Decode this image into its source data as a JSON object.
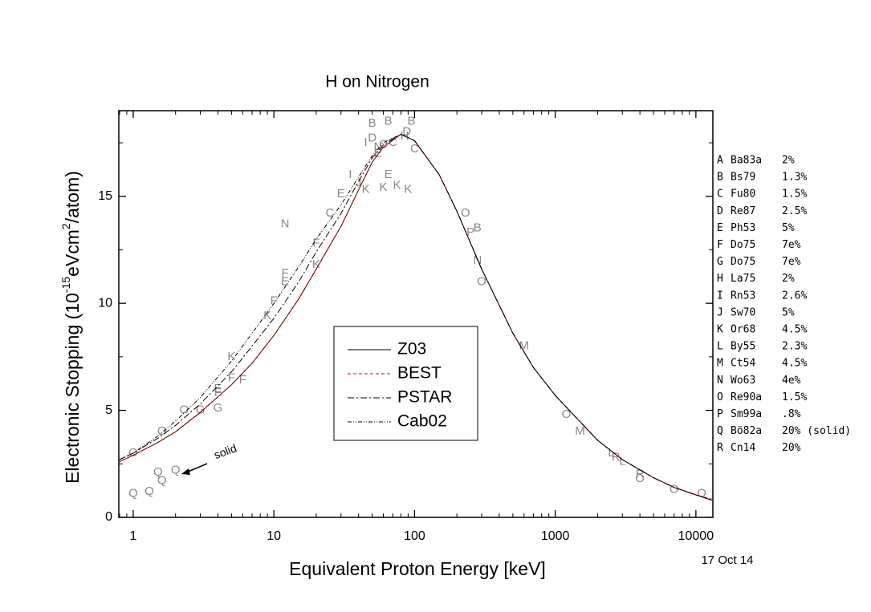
{
  "chart_data": {
    "type": "line",
    "title": "H on Nitrogen",
    "xlabel": "Equivalent Proton Energy [keV]",
    "ylabel_parts": [
      "Electronic Stopping (10",
      "-15",
      "eVcm",
      "2",
      "/atom)"
    ],
    "log_x": true,
    "xlim": [
      0.79,
      13200
    ],
    "xticks": [
      1,
      10,
      100,
      1000,
      10000
    ],
    "ylim": [
      0,
      19
    ],
    "yticks": [
      0,
      5,
      10,
      15
    ],
    "x": [
      0.8,
      1,
      1.5,
      2,
      3,
      5,
      7,
      10,
      15,
      20,
      30,
      40,
      50,
      60,
      80,
      100,
      150,
      200,
      300,
      500,
      700,
      1000,
      2000,
      3000,
      5000,
      7000,
      10000,
      13000
    ],
    "series": [
      {
        "name": "Z03",
        "color": "#000000",
        "dash": "none",
        "values": [
          2.6,
          2.9,
          3.5,
          4.0,
          4.9,
          6.2,
          7.2,
          8.5,
          10.2,
          11.6,
          13.6,
          15.3,
          16.6,
          17.3,
          17.9,
          17.6,
          16.0,
          14.3,
          11.6,
          8.6,
          7.0,
          5.7,
          3.6,
          2.7,
          1.85,
          1.4,
          1.05,
          0.8
        ]
      },
      {
        "name": "BEST",
        "color": "#e00000",
        "dash": "4,3",
        "values": [
          2.6,
          2.9,
          3.5,
          4.0,
          4.9,
          6.2,
          7.2,
          8.5,
          10.2,
          11.6,
          13.6,
          15.3,
          16.6,
          17.3,
          17.9,
          17.6,
          16.0,
          14.3,
          11.6,
          8.6,
          7.0,
          5.7,
          3.6,
          2.7,
          1.85,
          1.4,
          1.05,
          0.85
        ]
      },
      {
        "name": "PSTAR",
        "color": "#000000",
        "dash": "8,3,2,3",
        "values": [
          2.7,
          3.0,
          3.7,
          4.3,
          5.3,
          6.8,
          8.0,
          9.3,
          11.0,
          12.4,
          14.2,
          15.7,
          16.8,
          17.4,
          17.9,
          17.6,
          16.0,
          14.3,
          11.6,
          8.6,
          7.0,
          5.7,
          3.6,
          2.7,
          1.85,
          1.4,
          1.05,
          0.8
        ]
      },
      {
        "name": "Cab02",
        "color": "#000000",
        "dash": "5,2,1,2,1,2",
        "values": [
          2.7,
          3.0,
          3.8,
          4.5,
          5.6,
          7.3,
          8.6,
          10.0,
          11.7,
          13.0,
          14.6,
          15.9,
          16.9,
          17.5,
          17.9,
          17.6,
          16.0,
          14.3,
          11.6,
          8.6,
          7.0,
          5.7,
          3.6,
          2.7,
          1.85,
          1.4,
          1.05,
          0.8
        ]
      }
    ],
    "points": [
      {
        "letter": "Q",
        "x": 1,
        "y": 1.1
      },
      {
        "letter": "Q",
        "x": 1.3,
        "y": 1.2
      },
      {
        "letter": "Q",
        "x": 1.5,
        "y": 2.1
      },
      {
        "letter": "Q",
        "x": 1.6,
        "y": 1.7
      },
      {
        "letter": "Q",
        "x": 2,
        "y": 2.2
      },
      {
        "letter": "O",
        "x": 1,
        "y": 3.0
      },
      {
        "letter": "O",
        "x": 1.6,
        "y": 4.0
      },
      {
        "letter": "O",
        "x": 2.3,
        "y": 5.0
      },
      {
        "letter": "O",
        "x": 230,
        "y": 14.2
      },
      {
        "letter": "O",
        "x": 300,
        "y": 11.0
      },
      {
        "letter": "O",
        "x": 1200,
        "y": 4.8
      },
      {
        "letter": "O",
        "x": 4000,
        "y": 1.8
      },
      {
        "letter": "O",
        "x": 7000,
        "y": 1.3
      },
      {
        "letter": "O",
        "x": 11000,
        "y": 1.1
      },
      {
        "letter": "G",
        "x": 3,
        "y": 5.0
      },
      {
        "letter": "G",
        "x": 4,
        "y": 5.1
      },
      {
        "letter": "K",
        "x": 5,
        "y": 7.5
      },
      {
        "letter": "K",
        "x": 9,
        "y": 9.4
      },
      {
        "letter": "K",
        "x": 20,
        "y": 11.8
      },
      {
        "letter": "K",
        "x": 45,
        "y": 15.3
      },
      {
        "letter": "K",
        "x": 60,
        "y": 15.4
      },
      {
        "letter": "K",
        "x": 75,
        "y": 15.5
      },
      {
        "letter": "K",
        "x": 90,
        "y": 15.3
      },
      {
        "letter": "F",
        "x": 4,
        "y": 5.8
      },
      {
        "letter": "F",
        "x": 5,
        "y": 6.5
      },
      {
        "letter": "F",
        "x": 6,
        "y": 6.4
      },
      {
        "letter": "F",
        "x": 10,
        "y": 10.1
      },
      {
        "letter": "F",
        "x": 12,
        "y": 11.4
      },
      {
        "letter": "F",
        "x": 20,
        "y": 12.8
      },
      {
        "letter": "E",
        "x": 4,
        "y": 6.0
      },
      {
        "letter": "E",
        "x": 12,
        "y": 11.0
      },
      {
        "letter": "E",
        "x": 30,
        "y": 15.1
      },
      {
        "letter": "E",
        "x": 55,
        "y": 17.0
      },
      {
        "letter": "E",
        "x": 65,
        "y": 16.0
      },
      {
        "letter": "N",
        "x": 12,
        "y": 13.7
      },
      {
        "letter": "N",
        "x": 55,
        "y": 17.3
      },
      {
        "letter": "N",
        "x": 280,
        "y": 12.0
      },
      {
        "letter": "C",
        "x": 25,
        "y": 14.2
      },
      {
        "letter": "C",
        "x": 60,
        "y": 17.4
      },
      {
        "letter": "C",
        "x": 70,
        "y": 17.5
      },
      {
        "letter": "C",
        "x": 100,
        "y": 17.2
      },
      {
        "letter": "I",
        "x": 35,
        "y": 16.0
      },
      {
        "letter": "I",
        "x": 45,
        "y": 17.5
      },
      {
        "letter": "B",
        "x": 50,
        "y": 18.4
      },
      {
        "letter": "B",
        "x": 65,
        "y": 18.5
      },
      {
        "letter": "B",
        "x": 95,
        "y": 18.5
      },
      {
        "letter": "B",
        "x": 280,
        "y": 13.5
      },
      {
        "letter": "D",
        "x": 50,
        "y": 17.7
      },
      {
        "letter": "D",
        "x": 88,
        "y": 18.0
      },
      {
        "letter": "H",
        "x": 85,
        "y": 17.8
      },
      {
        "letter": "J",
        "x": 40,
        "y": 15.6
      },
      {
        "letter": "M",
        "x": 600,
        "y": 8.0
      },
      {
        "letter": "M",
        "x": 1500,
        "y": 4.0
      },
      {
        "letter": "L",
        "x": 2500,
        "y": 3.0
      },
      {
        "letter": "L",
        "x": 3000,
        "y": 2.6
      },
      {
        "letter": "R",
        "x": 2700,
        "y": 2.8
      },
      {
        "letter": "R",
        "x": 4000,
        "y": 2.0
      },
      {
        "letter": "P",
        "x": 250,
        "y": 13.3
      }
    ],
    "references": [
      [
        "A",
        "Ba83a",
        "2%"
      ],
      [
        "B",
        "Bs79",
        "1.3%"
      ],
      [
        "C",
        "Fu80",
        "1.5%"
      ],
      [
        "D",
        "Re87",
        "2.5%"
      ],
      [
        "E",
        "Ph53",
        "5%"
      ],
      [
        "F",
        "Do75",
        "7e%"
      ],
      [
        "G",
        "Do75",
        "7e%"
      ],
      [
        "H",
        "La75",
        "2%"
      ],
      [
        "I",
        "Rn53",
        "2.6%"
      ],
      [
        "J",
        "Sw70",
        "5%"
      ],
      [
        "K",
        "Or68",
        "4.5%"
      ],
      [
        "L",
        "By55",
        "2.3%"
      ],
      [
        "M",
        "Ct54",
        "4.5%"
      ],
      [
        "N",
        "Wo63",
        "4e%"
      ],
      [
        "O",
        "Re90a",
        "1.5%"
      ],
      [
        "P",
        "Sm99a",
        ".8%"
      ],
      [
        "Q",
        "Bö82a",
        "20% (solid)"
      ],
      [
        "R",
        "Cn14",
        "20%"
      ]
    ],
    "annotation": "solid",
    "date": "17 Oct 14"
  }
}
